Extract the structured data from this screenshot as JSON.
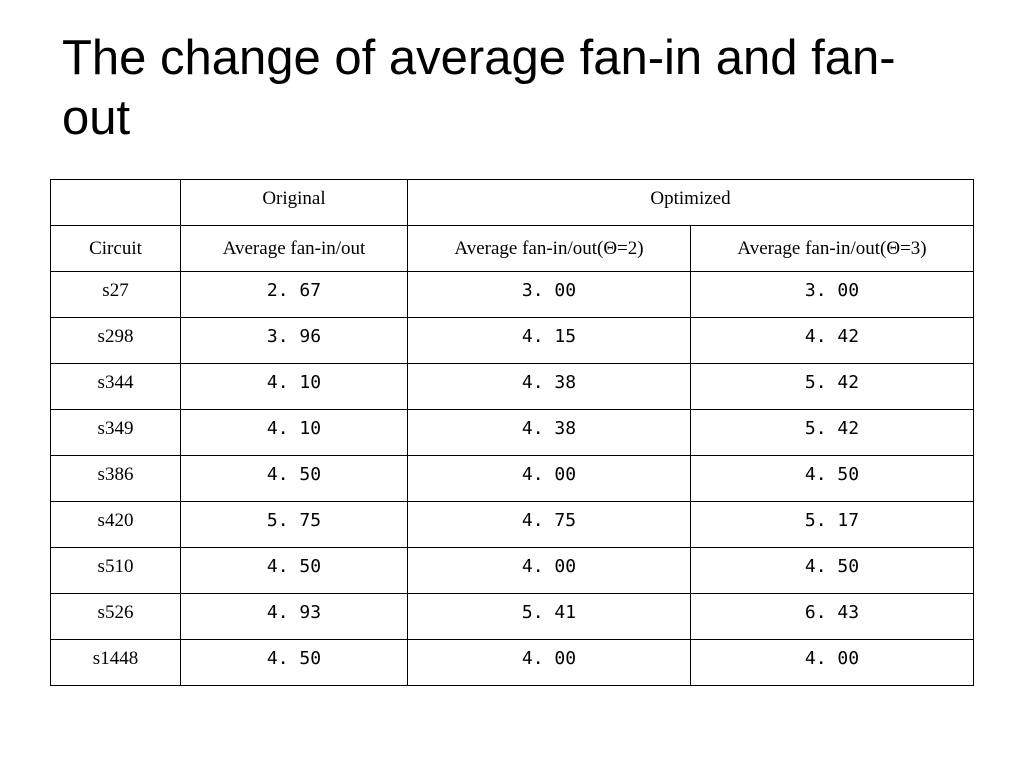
{
  "title": "The change of average fan-in and fan-out",
  "table": {
    "group_headers": {
      "empty": "",
      "original": "Original",
      "optimized": "Optimized"
    },
    "columns": [
      "Circuit",
      "Average fan-in/out",
      "Average fan-in/out(Θ=2)",
      "Average fan-in/out(Θ=3)"
    ],
    "rows": [
      [
        "s27",
        "2. 67",
        "3. 00",
        "3. 00"
      ],
      [
        "s298",
        "3. 96",
        "4. 15",
        "4. 42"
      ],
      [
        "s344",
        "4. 10",
        "4. 38",
        "5. 42"
      ],
      [
        "s349",
        "4. 10",
        "4. 38",
        "5. 42"
      ],
      [
        "s386",
        "4. 50",
        "4. 00",
        "4. 50"
      ],
      [
        "s420",
        "5. 75",
        "4. 75",
        "5. 17"
      ],
      [
        "s510",
        "4. 50",
        "4. 00",
        "4. 50"
      ],
      [
        "s526",
        "4. 93",
        "5. 41",
        "6. 43"
      ],
      [
        "s1448",
        "4. 50",
        "4. 00",
        "4. 00"
      ]
    ]
  }
}
